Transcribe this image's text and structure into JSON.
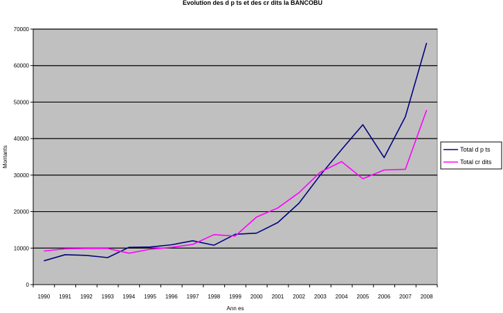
{
  "chart_data": {
    "type": "line",
    "title": "Evolution des d p ts et des cr dits la BANCOBU",
    "xlabel": "Ann es",
    "ylabel": "Montants",
    "x": [
      "1990",
      "1991",
      "1992",
      "1993",
      "1994",
      "1995",
      "1996",
      "1997",
      "1998",
      "1999",
      "2000",
      "2001",
      "2002",
      "2003",
      "2004",
      "2005",
      "2006",
      "2007",
      "2008"
    ],
    "ylim": [
      0,
      70000
    ],
    "yticks": [
      0,
      10000,
      20000,
      30000,
      40000,
      50000,
      60000,
      70000
    ],
    "grid": "horizontal",
    "plot_background": "#c0c0c0",
    "legend_position": "right",
    "series": [
      {
        "name": "Total d p ts",
        "color": "#000080",
        "values": [
          6500,
          8200,
          8000,
          7400,
          10200,
          10300,
          10900,
          12000,
          10800,
          13800,
          14100,
          17000,
          22300,
          30000,
          37000,
          43800,
          34800,
          46000,
          66200
        ]
      },
      {
        "name": "Total cr dits",
        "color": "#ff00ff",
        "values": [
          9200,
          9800,
          9900,
          9900,
          8600,
          9700,
          10200,
          11000,
          13700,
          13300,
          18500,
          21000,
          25200,
          30800,
          33700,
          29000,
          31400,
          31600,
          47800
        ]
      }
    ]
  }
}
